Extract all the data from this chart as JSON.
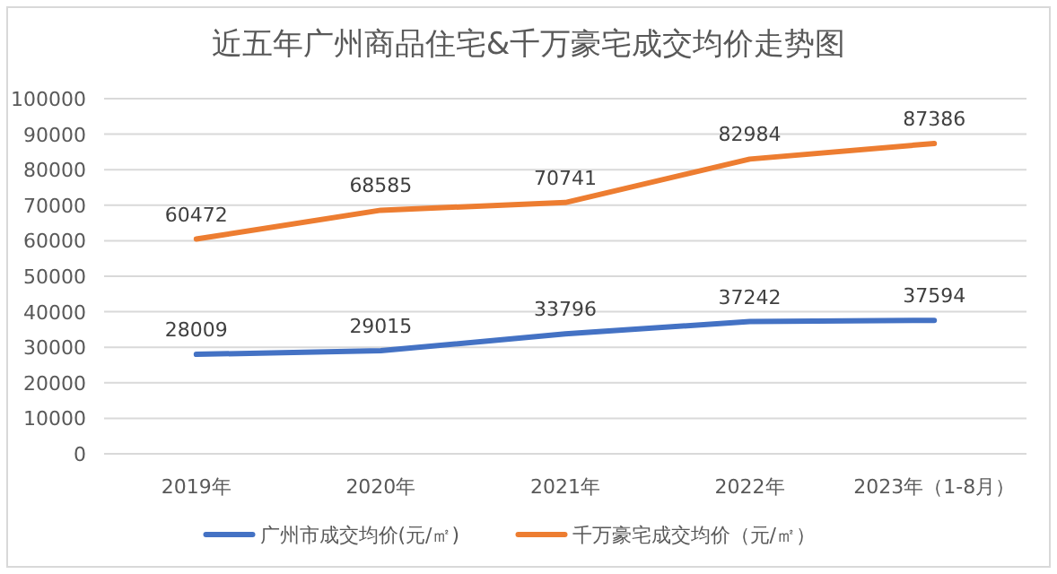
{
  "chart_data": {
    "type": "line",
    "title": "近五年广州商品住宅&千万豪宅成交均价走势图",
    "categories": [
      "2019年",
      "2020年",
      "2021年",
      "2022年",
      "2023年（1-8月）"
    ],
    "series": [
      {
        "name": "广州市成交均价(元/㎡)",
        "color": "#4472c4",
        "values": [
          28009,
          29015,
          33796,
          37242,
          37594
        ]
      },
      {
        "name": "千万豪宅成交均价（元/㎡）",
        "color": "#ed7d31",
        "values": [
          60472,
          68585,
          70741,
          82984,
          87386
        ]
      }
    ],
    "ylim": [
      0,
      100000
    ],
    "yticks": [
      0,
      10000,
      20000,
      30000,
      40000,
      50000,
      60000,
      70000,
      80000,
      90000,
      100000
    ],
    "grid": "y",
    "legend": "bottom",
    "data_labels": true,
    "marker": "none",
    "line_style": "solid"
  }
}
